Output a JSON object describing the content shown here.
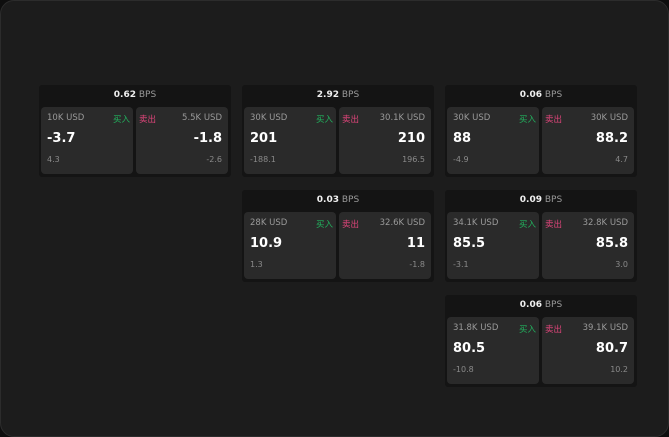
{
  "unit": "BPS",
  "buy_label": "买入",
  "sell_label": "卖出",
  "colors": {
    "buy": "#22b35e",
    "sell": "#e0457b"
  },
  "cards": [
    {
      "spread": "0.62",
      "bid": {
        "size": "10K USD",
        "price": "-3.7",
        "change": "4.3"
      },
      "ask": {
        "size": "5.5K USD",
        "price": "-1.8",
        "change": "-2.6"
      }
    },
    {
      "spread": "2.92",
      "bid": {
        "size": "30K USD",
        "price": "201",
        "change": "-188.1"
      },
      "ask": {
        "size": "30.1K USD",
        "price": "210",
        "change": "196.5"
      }
    },
    {
      "spread": "0.06",
      "bid": {
        "size": "30K USD",
        "price": "88",
        "change": "-4.9"
      },
      "ask": {
        "size": "30K USD",
        "price": "88.2",
        "change": "4.7"
      }
    },
    {
      "spread": "0.03",
      "bid": {
        "size": "28K USD",
        "price": "10.9",
        "change": "1.3"
      },
      "ask": {
        "size": "32.6K USD",
        "price": "11",
        "change": "-1.8"
      }
    },
    {
      "spread": "0.09",
      "bid": {
        "size": "34.1K USD",
        "price": "85.5",
        "change": "-3.1"
      },
      "ask": {
        "size": "32.8K USD",
        "price": "85.8",
        "change": "3.0"
      }
    },
    {
      "spread": "0.06",
      "bid": {
        "size": "31.8K USD",
        "price": "80.5",
        "change": "-10.8"
      },
      "ask": {
        "size": "39.1K USD",
        "price": "80.7",
        "change": "10.2"
      }
    }
  ]
}
